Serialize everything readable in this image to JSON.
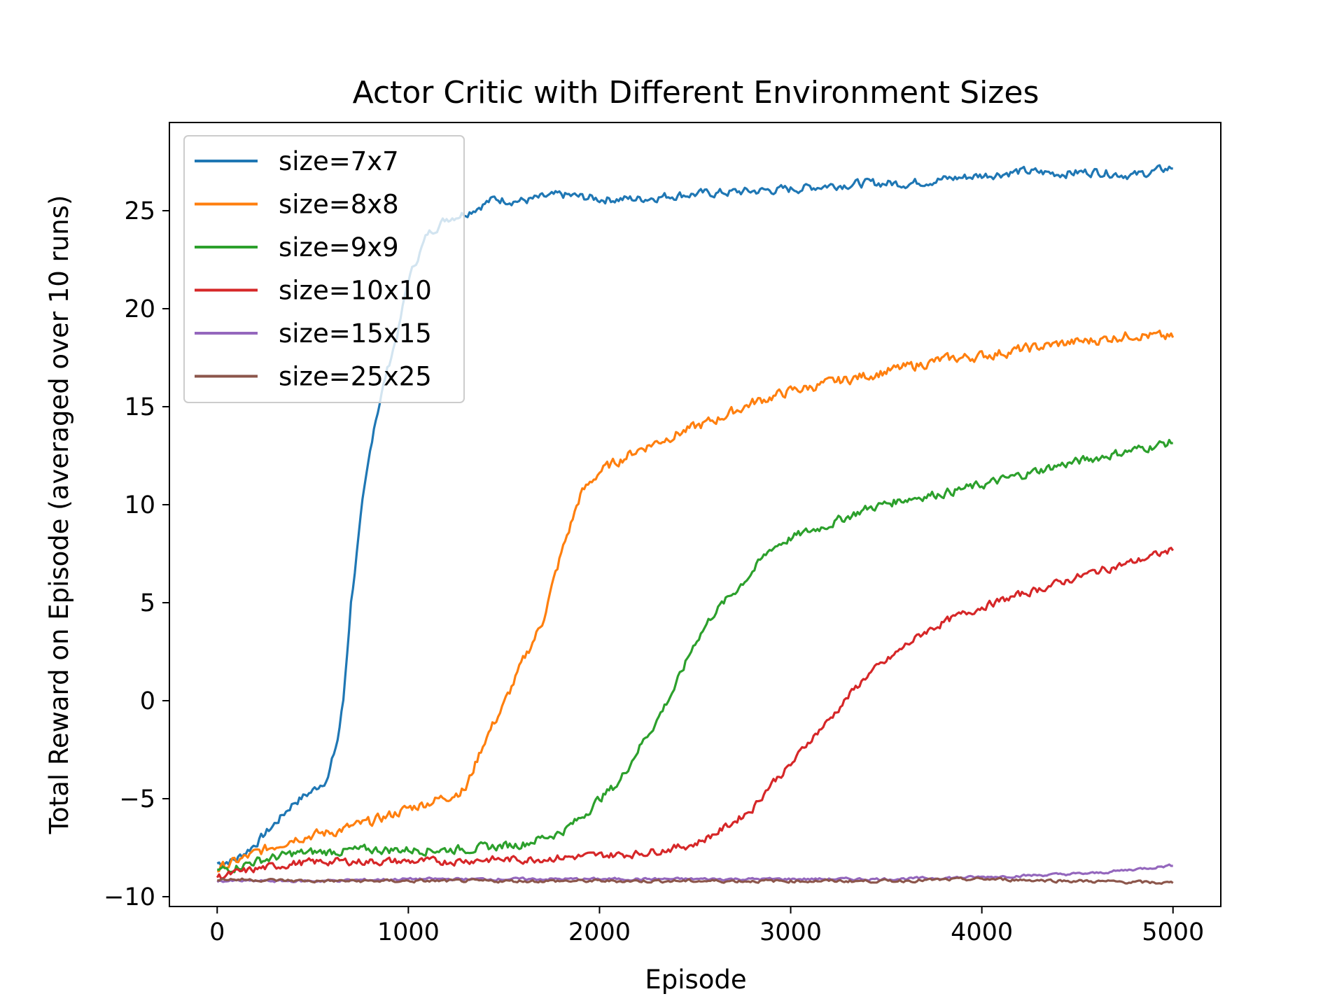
{
  "chart_data": {
    "type": "line",
    "title": "Actor Critic with Different Environment Sizes",
    "xlabel": "Episode",
    "ylabel": "Total Reward on Episode (averaged over 10 runs)",
    "xlim": [
      -250,
      5250
    ],
    "ylim": [
      -10.5,
      29.5
    ],
    "xticks": [
      0,
      1000,
      2000,
      3000,
      4000,
      5000
    ],
    "xtick_labels": [
      "0",
      "1000",
      "2000",
      "3000",
      "4000",
      "5000"
    ],
    "yticks": [
      -10,
      -5,
      0,
      5,
      10,
      15,
      20,
      25
    ],
    "ytick_labels": [
      "−10",
      "−5",
      "0",
      "5",
      "10",
      "15",
      "20",
      "25"
    ],
    "grid": false,
    "legend_position": "top-left",
    "series": [
      {
        "name": "size=7x7",
        "color": "#1f77b4",
        "noise": 0.35,
        "points": [
          [
            0,
            -8.3
          ],
          [
            100,
            -8.1
          ],
          [
            200,
            -7.3
          ],
          [
            300,
            -6.3
          ],
          [
            400,
            -5.2
          ],
          [
            500,
            -4.6
          ],
          [
            580,
            -3.9
          ],
          [
            630,
            -2.0
          ],
          [
            660,
            0.0
          ],
          [
            700,
            5.0
          ],
          [
            760,
            10.0
          ],
          [
            820,
            14.0
          ],
          [
            880,
            16.5
          ],
          [
            950,
            19.0
          ],
          [
            1000,
            21.5
          ],
          [
            1100,
            23.8
          ],
          [
            1200,
            24.6
          ],
          [
            1300,
            24.9
          ],
          [
            1450,
            25.6
          ],
          [
            1600,
            25.5
          ],
          [
            1800,
            25.8
          ],
          [
            2000,
            25.6
          ],
          [
            2200,
            25.6
          ],
          [
            2400,
            25.8
          ],
          [
            2600,
            25.9
          ],
          [
            2800,
            26.0
          ],
          [
            3000,
            26.1
          ],
          [
            3200,
            26.3
          ],
          [
            3400,
            26.4
          ],
          [
            3600,
            26.4
          ],
          [
            3800,
            26.6
          ],
          [
            4000,
            26.8
          ],
          [
            4200,
            27.0
          ],
          [
            4400,
            26.9
          ],
          [
            4600,
            27.0
          ],
          [
            4800,
            26.8
          ],
          [
            5000,
            27.2
          ]
        ]
      },
      {
        "name": "size=8x8",
        "color": "#ff7f0e",
        "noise": 0.4,
        "points": [
          [
            0,
            -8.6
          ],
          [
            200,
            -7.8
          ],
          [
            400,
            -7.0
          ],
          [
            600,
            -6.7
          ],
          [
            800,
            -6.2
          ],
          [
            1000,
            -5.5
          ],
          [
            1200,
            -4.9
          ],
          [
            1300,
            -4.5
          ],
          [
            1400,
            -2.0
          ],
          [
            1500,
            -0.2
          ],
          [
            1600,
            2.0
          ],
          [
            1700,
            4.0
          ],
          [
            1800,
            7.5
          ],
          [
            1900,
            10.5
          ],
          [
            2000,
            11.7
          ],
          [
            2200,
            12.8
          ],
          [
            2400,
            13.6
          ],
          [
            2600,
            14.3
          ],
          [
            2800,
            15.2
          ],
          [
            3000,
            15.8
          ],
          [
            3200,
            16.2
          ],
          [
            3400,
            16.6
          ],
          [
            3600,
            17.0
          ],
          [
            3800,
            17.4
          ],
          [
            4000,
            17.6
          ],
          [
            4200,
            17.9
          ],
          [
            4400,
            18.2
          ],
          [
            4600,
            18.4
          ],
          [
            4800,
            18.7
          ],
          [
            5000,
            18.5
          ]
        ]
      },
      {
        "name": "size=9x9",
        "color": "#2ca02c",
        "noise": 0.35,
        "points": [
          [
            0,
            -8.7
          ],
          [
            200,
            -8.2
          ],
          [
            400,
            -7.8
          ],
          [
            600,
            -7.7
          ],
          [
            800,
            -7.6
          ],
          [
            1000,
            -7.6
          ],
          [
            1200,
            -7.6
          ],
          [
            1400,
            -7.5
          ],
          [
            1600,
            -7.3
          ],
          [
            1800,
            -6.7
          ],
          [
            1900,
            -6.0
          ],
          [
            2000,
            -5.0
          ],
          [
            2100,
            -4.2
          ],
          [
            2200,
            -2.5
          ],
          [
            2300,
            -1.0
          ],
          [
            2400,
            0.8
          ],
          [
            2500,
            3.0
          ],
          [
            2600,
            4.5
          ],
          [
            2700,
            5.5
          ],
          [
            2800,
            6.6
          ],
          [
            2900,
            7.8
          ],
          [
            3000,
            8.3
          ],
          [
            3200,
            9.0
          ],
          [
            3400,
            9.8
          ],
          [
            3600,
            10.3
          ],
          [
            3800,
            10.6
          ],
          [
            4000,
            11.0
          ],
          [
            4200,
            11.5
          ],
          [
            4400,
            12.0
          ],
          [
            4600,
            12.4
          ],
          [
            4800,
            12.8
          ],
          [
            5000,
            13.2
          ]
        ]
      },
      {
        "name": "size=10x10",
        "color": "#d62728",
        "noise": 0.3,
        "points": [
          [
            0,
            -9.0
          ],
          [
            200,
            -8.6
          ],
          [
            400,
            -8.3
          ],
          [
            600,
            -8.2
          ],
          [
            800,
            -8.2
          ],
          [
            1000,
            -8.2
          ],
          [
            1200,
            -8.2
          ],
          [
            1400,
            -8.1
          ],
          [
            1600,
            -8.1
          ],
          [
            1800,
            -8.0
          ],
          [
            2000,
            -7.9
          ],
          [
            2200,
            -7.8
          ],
          [
            2400,
            -7.5
          ],
          [
            2500,
            -7.3
          ],
          [
            2600,
            -6.8
          ],
          [
            2700,
            -6.2
          ],
          [
            2800,
            -5.5
          ],
          [
            2900,
            -4.2
          ],
          [
            3000,
            -3.3
          ],
          [
            3100,
            -2.0
          ],
          [
            3200,
            -1.0
          ],
          [
            3300,
            0.2
          ],
          [
            3400,
            1.3
          ],
          [
            3500,
            2.0
          ],
          [
            3600,
            2.8
          ],
          [
            3700,
            3.5
          ],
          [
            3800,
            4.0
          ],
          [
            3900,
            4.4
          ],
          [
            4000,
            4.8
          ],
          [
            4200,
            5.4
          ],
          [
            4400,
            6.0
          ],
          [
            4600,
            6.6
          ],
          [
            4800,
            7.1
          ],
          [
            5000,
            7.7
          ]
        ]
      },
      {
        "name": "size=15x15",
        "color": "#9467bd",
        "noise": 0.1,
        "points": [
          [
            0,
            -9.2
          ],
          [
            500,
            -9.2
          ],
          [
            1000,
            -9.1
          ],
          [
            1500,
            -9.1
          ],
          [
            2000,
            -9.1
          ],
          [
            2500,
            -9.1
          ],
          [
            3000,
            -9.1
          ],
          [
            3500,
            -9.1
          ],
          [
            4000,
            -9.0
          ],
          [
            4300,
            -8.9
          ],
          [
            4600,
            -8.8
          ],
          [
            4800,
            -8.6
          ],
          [
            5000,
            -8.4
          ]
        ]
      },
      {
        "name": "size=25x25",
        "color": "#8c564b",
        "noise": 0.12,
        "points": [
          [
            0,
            -9.1
          ],
          [
            500,
            -9.2
          ],
          [
            1000,
            -9.2
          ],
          [
            1500,
            -9.2
          ],
          [
            2000,
            -9.2
          ],
          [
            2500,
            -9.2
          ],
          [
            3000,
            -9.2
          ],
          [
            3500,
            -9.2
          ],
          [
            4000,
            -9.1
          ],
          [
            4500,
            -9.2
          ],
          [
            5000,
            -9.3
          ]
        ]
      }
    ]
  }
}
